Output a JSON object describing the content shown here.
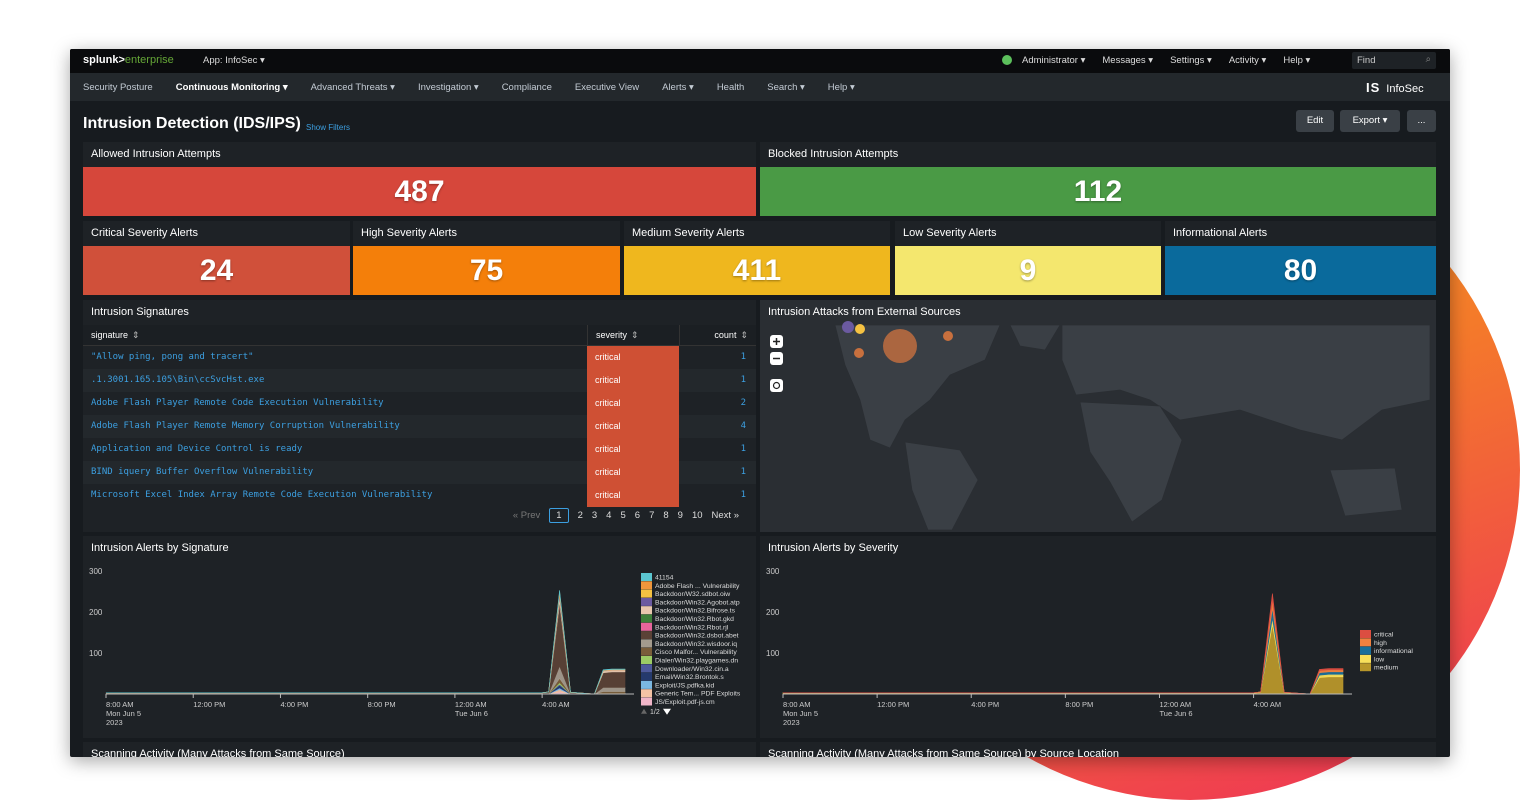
{
  "topbar": {
    "logo_brand": "splunk>",
    "logo_product": "enterprise",
    "app": "App: InfoSec ▾",
    "menu": [
      "Administrator ▾",
      "Messages ▾",
      "Settings ▾",
      "Activity ▾",
      "Help ▾"
    ],
    "search_placeholder": "Find"
  },
  "nav": {
    "items": [
      "Security Posture",
      "Continuous Monitoring ▾",
      "Advanced Threats ▾",
      "Investigation ▾",
      "Compliance",
      "Executive View",
      "Alerts ▾",
      "Health",
      "Search ▾",
      "Help ▾"
    ],
    "active_index": 1,
    "brand_mark": "IS",
    "brand": "InfoSec"
  },
  "header": {
    "title": "Intrusion Detection (IDS/IPS)",
    "link": "Show Filters",
    "buttons": [
      "Edit",
      "Export ▾",
      "..."
    ]
  },
  "summary": [
    {
      "title": "Allowed Intrusion Attempts",
      "value": 487,
      "color": "#d6473b"
    },
    {
      "title": "Blocked Intrusion Attempts",
      "value": 112,
      "color": "#4a9a45"
    }
  ],
  "severity_tiles": [
    {
      "title": "Critical Severity Alerts",
      "value": 24,
      "color": "#d0503a"
    },
    {
      "title": "High Severity Alerts",
      "value": 75,
      "color": "#f47f0a"
    },
    {
      "title": "Medium Severity Alerts",
      "value": 411,
      "color": "#efb71e"
    },
    {
      "title": "Low Severity Alerts",
      "value": 9,
      "color": "#f4e76e"
    },
    {
      "title": "Informational Alerts",
      "value": 80,
      "color": "#0a6a9c"
    }
  ],
  "signatures_table": {
    "title": "Intrusion Signatures",
    "columns": [
      "signature",
      "severity",
      "count"
    ],
    "rows": [
      [
        "\"Allow ping, pong and tracert\"",
        "critical",
        1
      ],
      [
        ".1.3001.165.105\\Bin\\ccSvcHst.exe",
        "critical",
        1
      ],
      [
        "Adobe Flash Player Remote Code Execution Vulnerability",
        "critical",
        2
      ],
      [
        "Adobe Flash Player Remote Memory Corruption Vulnerability",
        "critical",
        4
      ],
      [
        "Application and Device Control is ready",
        "critical",
        1
      ],
      [
        "BIND iquery Buffer Overflow Vulnerability",
        "critical",
        1
      ],
      [
        "Microsoft Excel Index Array Remote Code Execution Vulnerability",
        "critical",
        1
      ]
    ],
    "severity_color": "#cf5034",
    "pagination": {
      "prev": "« Prev",
      "pages": [
        1,
        2,
        3,
        4,
        5,
        6,
        7,
        8,
        9,
        10
      ],
      "current": 1,
      "next": "Next »"
    }
  },
  "map": {
    "title": "Intrusion Attacks from External Sources"
  },
  "charts": [
    {
      "type": "area",
      "title": "Intrusion Alerts by Signature",
      "stacked": true,
      "x": [
        0,
        2,
        4,
        6,
        8,
        10,
        12,
        14,
        16,
        18,
        20,
        20.3,
        20.8,
        21.3,
        22.4,
        22.8,
        23.2,
        23.8
      ],
      "xlim": [
        0,
        23.8
      ],
      "xticks": [
        {
          "value": 0,
          "label": "8:00 AM"
        },
        {
          "value": 4,
          "label": "12:00 PM"
        },
        {
          "value": 8,
          "label": "4:00 PM"
        },
        {
          "value": 12,
          "label": "8:00 PM"
        },
        {
          "value": 16,
          "label": "12:00 AM"
        },
        {
          "value": 20,
          "label": "4:00 AM"
        }
      ],
      "x_sublabels": [
        {
          "value": 0,
          "lines": [
            "Mon Jun 5",
            "2023"
          ]
        },
        {
          "value": 16,
          "lines": [
            "Tue Jun 6"
          ]
        }
      ],
      "ylim": [
        0,
        300
      ],
      "yticks": [
        100,
        200,
        300
      ],
      "legend_page": "1/2",
      "series": [
        {
          "name": "41154",
          "color": "#5bc6d0",
          "values": [
            0,
            0,
            0,
            0,
            0,
            0,
            0,
            0,
            0,
            0,
            0,
            0,
            3,
            0,
            0,
            1,
            1,
            1
          ]
        },
        {
          "name": "Adobe Flash ... Vulnerability",
          "color": "#f0963c",
          "values": [
            0,
            0,
            0,
            0,
            0,
            0,
            0,
            0,
            0,
            0,
            0,
            0,
            4,
            0,
            0,
            1,
            1,
            1
          ]
        },
        {
          "name": "Backdoor/W32.sdbot.oiw",
          "color": "#f5c242",
          "values": [
            0,
            0,
            0,
            0,
            0,
            0,
            0,
            0,
            0,
            0,
            0,
            0,
            3,
            0,
            0,
            0,
            0,
            0
          ]
        },
        {
          "name": "Backdoor/Win32.Agobot.atp",
          "color": "#6b5aa0",
          "values": [
            0,
            0,
            0,
            0,
            0,
            0,
            0,
            0,
            0,
            0,
            0,
            0,
            5,
            0,
            0,
            0,
            0,
            0
          ]
        },
        {
          "name": "Backdoor/Win32.Bifrose.ts",
          "color": "#e8c7ae",
          "values": [
            0,
            0,
            0,
            0,
            0,
            0,
            0,
            0,
            0,
            0,
            0,
            0,
            12,
            0,
            0,
            5,
            5,
            5
          ]
        },
        {
          "name": "Backdoor/Win32.Rbot.gkd",
          "color": "#3d7f3a",
          "values": [
            0,
            0,
            0,
            0,
            0,
            0,
            0,
            0,
            0,
            0,
            0,
            0,
            5,
            0,
            0,
            0,
            0,
            0
          ]
        },
        {
          "name": "Backdoor/Win32.Rbot.rjl",
          "color": "#e7659c",
          "values": [
            0,
            0,
            0,
            0,
            0,
            0,
            0,
            0,
            0,
            0,
            0,
            0,
            3,
            0,
            0,
            0,
            0,
            0
          ]
        },
        {
          "name": "Backdoor/Win32.dsbot.abet",
          "color": "#5b4236",
          "values": [
            2,
            2,
            2,
            2,
            2,
            2,
            2,
            2,
            2,
            2,
            2,
            4,
            150,
            3,
            0,
            36,
            38,
            38
          ]
        },
        {
          "name": "Backdoor/Win32.wisdoor.iq",
          "color": "#a49b8d",
          "values": [
            1,
            1,
            1,
            1,
            1,
            1,
            1,
            1,
            1,
            1,
            1,
            1,
            30,
            1,
            0,
            10,
            10,
            10
          ]
        },
        {
          "name": "Cisco Malfor... Vulnerability",
          "color": "#7a5e3a",
          "values": [
            0,
            0,
            0,
            0,
            0,
            0,
            0,
            0,
            0,
            0,
            0,
            0,
            10,
            0,
            0,
            4,
            4,
            4
          ]
        },
        {
          "name": "Dialer/Win32.playgames.dn",
          "color": "#9ccc65",
          "values": [
            0,
            0,
            0,
            0,
            0,
            0,
            0,
            0,
            0,
            0,
            0,
            0,
            4,
            0,
            0,
            0,
            0,
            0
          ]
        },
        {
          "name": "Downloader/Win32.cin.a",
          "color": "#4e5a9c",
          "values": [
            0,
            0,
            0,
            0,
            0,
            0,
            0,
            0,
            0,
            0,
            0,
            0,
            3,
            0,
            0,
            0,
            0,
            0
          ]
        },
        {
          "name": "Email/Win32.Brontok.s",
          "color": "#253a6d",
          "values": [
            0,
            0,
            0,
            0,
            0,
            0,
            0,
            0,
            0,
            0,
            0,
            0,
            6,
            0,
            0,
            0,
            0,
            0
          ]
        },
        {
          "name": "Exploit/JS.pdfka.kid",
          "color": "#7bb7e0",
          "values": [
            0,
            0,
            0,
            0,
            0,
            0,
            0,
            0,
            0,
            0,
            0,
            0,
            4,
            0,
            0,
            0,
            0,
            0
          ]
        },
        {
          "name": "Generic Tem... PDF Exploits",
          "color": "#f4c3a5",
          "values": [
            0,
            0,
            0,
            0,
            0,
            0,
            0,
            0,
            0,
            0,
            0,
            0,
            6,
            0,
            0,
            2,
            2,
            2
          ]
        },
        {
          "name": "JS/Exploit.pdf-js.cm",
          "color": "#f0b5c8",
          "values": [
            0,
            0,
            0,
            0,
            0,
            0,
            0,
            0,
            0,
            0,
            0,
            0,
            5,
            0,
            0,
            0,
            0,
            0
          ]
        }
      ]
    },
    {
      "type": "area",
      "title": "Intrusion Alerts by Severity",
      "stacked": true,
      "x": [
        0,
        2,
        4,
        6,
        8,
        10,
        12,
        14,
        16,
        18,
        20,
        20.3,
        20.8,
        21.3,
        22.4,
        22.8,
        23.2,
        23.8
      ],
      "xlim": [
        0,
        23.8
      ],
      "xticks": [
        {
          "value": 0,
          "label": "8:00 AM"
        },
        {
          "value": 4,
          "label": "12:00 PM"
        },
        {
          "value": 8,
          "label": "4:00 PM"
        },
        {
          "value": 12,
          "label": "8:00 PM"
        },
        {
          "value": 16,
          "label": "12:00 AM"
        },
        {
          "value": 20,
          "label": "4:00 AM"
        }
      ],
      "x_sublabels": [
        {
          "value": 0,
          "lines": [
            "Mon Jun 5",
            "2023"
          ]
        },
        {
          "value": 16,
          "lines": [
            "Tue Jun 6"
          ]
        }
      ],
      "ylim": [
        0,
        300
      ],
      "yticks": [
        100,
        200,
        300
      ],
      "series": [
        {
          "name": "critical",
          "color": "#dc4e41",
          "values": [
            0,
            0,
            0,
            0,
            0,
            0,
            0,
            0,
            0,
            0,
            0,
            0,
            15,
            0,
            0,
            3,
            3,
            3
          ]
        },
        {
          "name": "high",
          "color": "#f1813f",
          "values": [
            0,
            0,
            0,
            0,
            0,
            0,
            0,
            0,
            0,
            0,
            0,
            0,
            20,
            0,
            0,
            5,
            5,
            5
          ]
        },
        {
          "name": "informational",
          "color": "#1a6f9a",
          "values": [
            0,
            0,
            0,
            0,
            0,
            0,
            0,
            0,
            0,
            0,
            0,
            0,
            25,
            0,
            0,
            6,
            6,
            6
          ]
        },
        {
          "name": "low",
          "color": "#f8e05a",
          "values": [
            1,
            1,
            1,
            1,
            1,
            1,
            1,
            1,
            1,
            1,
            1,
            1,
            15,
            1,
            0,
            6,
            6,
            6
          ]
        },
        {
          "name": "medium",
          "color": "#b8972a",
          "values": [
            2,
            2,
            2,
            2,
            2,
            2,
            2,
            2,
            2,
            2,
            2,
            4,
            170,
            3,
            0,
            40,
            42,
            42
          ]
        }
      ]
    }
  ],
  "more_panels": [
    "Scanning Activity (Many Attacks from Same Source)",
    "Scanning Activity (Many Attacks from Same Source) by Source Location"
  ]
}
